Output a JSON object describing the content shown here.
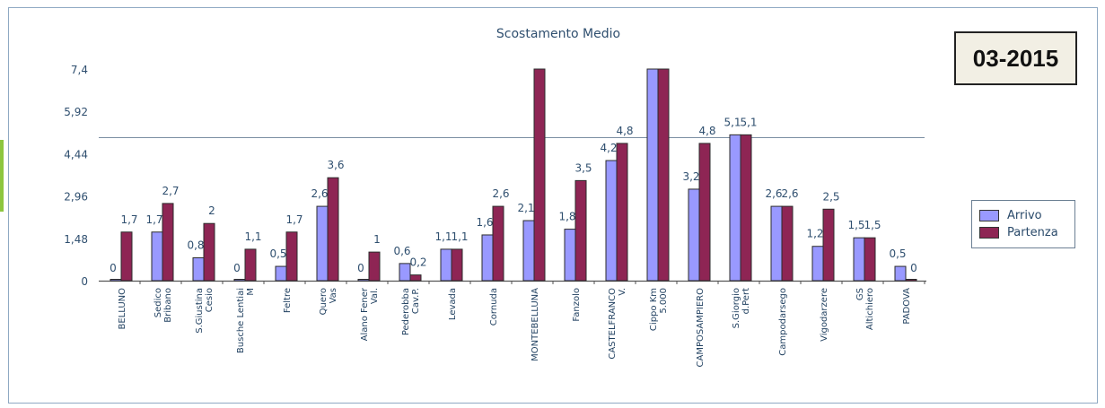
{
  "badge": "03-2015",
  "chart_data": {
    "type": "bar",
    "title": "Scostamento Medio",
    "xlabel": "",
    "ylabel": "",
    "ylim": [
      0,
      7.4
    ],
    "yticks": [
      "0",
      "1,48",
      "2,96",
      "4,44",
      "5,92",
      "7,4"
    ],
    "ytick_values": [
      0,
      1.48,
      2.96,
      4.44,
      5.92,
      7.4
    ],
    "reference_line": 5,
    "grid": false,
    "legend_position": "right",
    "categories": [
      "BELLUNO",
      "Sedico Bribano",
      "S.Giustina Cesio",
      "Busche Lentiai M",
      "Feltre",
      "Quero Vas",
      "Alano Fener Val.",
      "Pederobba Cav.P.",
      "Levada",
      "Cornuda",
      "MONTEBELLUNA",
      "Fanzolo",
      "CASTELFRANCO V.",
      "Cippo Km 5.000",
      "CAMPOSAMPIERO",
      "S.Giorgio d.Pert",
      "Campodarsego",
      "Vigodarzere",
      "GS Altichiero",
      "PADOVA"
    ],
    "series": [
      {
        "name": "Arrivo",
        "color": "#9999ff",
        "values": [
          0,
          1.7,
          0.8,
          0,
          0.5,
          2.6,
          0,
          0.6,
          1.1,
          1.6,
          2.1,
          1.8,
          4.2,
          7.4,
          3.2,
          5.1,
          2.6,
          1.2,
          1.5,
          0.5
        ],
        "labels": [
          "0",
          "1,7",
          "0,8",
          "0",
          "0,5",
          "2,6",
          "0",
          "0,6",
          "1,1",
          "1,6",
          "2,1",
          "1,8",
          "4,2",
          "",
          "3,2",
          "5,1",
          "2,6",
          "1,2",
          "1,5",
          "0,5"
        ]
      },
      {
        "name": "Partenza",
        "color": "#8e2554",
        "values": [
          1.7,
          2.7,
          2,
          1.1,
          1.7,
          3.6,
          1,
          0.2,
          1.1,
          2.6,
          7.4,
          3.5,
          4.8,
          7.4,
          4.8,
          5.1,
          2.6,
          2.5,
          1.5,
          0
        ],
        "labels": [
          "1,7",
          "2,7",
          "2",
          "1,1",
          "1,7",
          "3,6",
          "1",
          "0,2",
          "1,1",
          "2,6",
          "",
          "3,5",
          "4,8",
          "",
          "4,8",
          "5,1",
          "2,6",
          "2,5",
          "1,5",
          "0"
        ]
      }
    ]
  }
}
